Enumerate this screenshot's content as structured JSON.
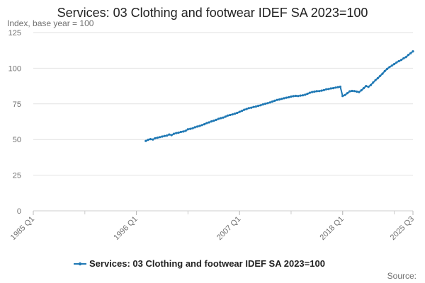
{
  "chart_data": {
    "type": "line",
    "title": "Services: 03 Clothing and footwear IDEF SA 2023=100",
    "subtitle": "Index, base year = 100",
    "source_label": "Source:",
    "ylim": [
      0,
      125
    ],
    "y_ticks": [
      "0",
      "25",
      "50",
      "75",
      "100",
      "125"
    ],
    "x_tick_labels": [
      "1985 Q1",
      "1996 Q1",
      "2007 Q1",
      "2018 Q1",
      "2025 Q3"
    ],
    "grid": true,
    "legend_position": "bottom",
    "series": [
      {
        "name": "Services: 03 Clothing and footwear IDEF SA 2023=100",
        "color": "#1f78b4",
        "x": [
          "1997 Q1",
          "1997 Q2",
          "1997 Q3",
          "1997 Q4",
          "1998 Q1",
          "1998 Q2",
          "1998 Q3",
          "1998 Q4",
          "1999 Q1",
          "1999 Q2",
          "1999 Q3",
          "1999 Q4",
          "2000 Q1",
          "2000 Q2",
          "2000 Q3",
          "2000 Q4",
          "2001 Q1",
          "2001 Q2",
          "2001 Q3",
          "2001 Q4",
          "2002 Q1",
          "2002 Q2",
          "2002 Q3",
          "2002 Q4",
          "2003 Q1",
          "2003 Q2",
          "2003 Q3",
          "2003 Q4",
          "2004 Q1",
          "2004 Q2",
          "2004 Q3",
          "2004 Q4",
          "2005 Q1",
          "2005 Q2",
          "2005 Q3",
          "2005 Q4",
          "2006 Q1",
          "2006 Q2",
          "2006 Q3",
          "2006 Q4",
          "2007 Q1",
          "2007 Q2",
          "2007 Q3",
          "2007 Q4",
          "2008 Q1",
          "2008 Q2",
          "2008 Q3",
          "2008 Q4",
          "2009 Q1",
          "2009 Q2",
          "2009 Q3",
          "2009 Q4",
          "2010 Q1",
          "2010 Q2",
          "2010 Q3",
          "2010 Q4",
          "2011 Q1",
          "2011 Q2",
          "2011 Q3",
          "2011 Q4",
          "2012 Q1",
          "2012 Q2",
          "2012 Q3",
          "2012 Q4",
          "2013 Q1",
          "2013 Q2",
          "2013 Q3",
          "2013 Q4",
          "2014 Q1",
          "2014 Q2",
          "2014 Q3",
          "2014 Q4",
          "2015 Q1",
          "2015 Q2",
          "2015 Q3",
          "2015 Q4",
          "2016 Q1",
          "2016 Q2",
          "2016 Q3",
          "2016 Q4",
          "2017 Q1",
          "2017 Q2",
          "2017 Q3",
          "2017 Q4",
          "2018 Q1",
          "2018 Q2",
          "2018 Q3",
          "2018 Q4",
          "2019 Q1",
          "2019 Q2",
          "2019 Q3",
          "2019 Q4",
          "2020 Q1",
          "2020 Q2",
          "2020 Q3",
          "2020 Q4",
          "2021 Q1",
          "2021 Q2",
          "2021 Q3",
          "2021 Q4",
          "2022 Q1",
          "2022 Q2",
          "2022 Q3",
          "2022 Q4",
          "2023 Q1",
          "2023 Q2",
          "2023 Q3",
          "2023 Q4",
          "2024 Q1",
          "2024 Q2",
          "2024 Q3",
          "2024 Q4",
          "2025 Q1",
          "2025 Q2",
          "2025 Q3"
        ],
        "values": [
          49.0,
          49.8,
          50.3,
          50.0,
          50.9,
          51.3,
          51.7,
          52.1,
          52.5,
          52.8,
          53.5,
          53.1,
          54.0,
          54.5,
          54.8,
          55.3,
          55.6,
          56.1,
          57.2,
          57.5,
          57.9,
          58.6,
          59.1,
          59.5,
          60.1,
          60.7,
          61.5,
          62.0,
          62.7,
          63.2,
          63.8,
          64.5,
          65.0,
          65.4,
          66.0,
          66.8,
          67.2,
          67.6,
          68.1,
          68.7,
          69.4,
          70.1,
          70.9,
          71.4,
          72.0,
          72.3,
          72.8,
          73.1,
          73.6,
          74.0,
          74.6,
          75.1,
          75.5,
          76.0,
          76.6,
          77.2,
          77.8,
          78.1,
          78.5,
          78.9,
          79.3,
          79.6,
          80.1,
          80.4,
          80.6,
          80.5,
          80.8,
          81.0,
          81.4,
          82.1,
          82.8,
          83.3,
          83.6,
          83.9,
          84.0,
          84.3,
          84.6,
          85.2,
          85.4,
          85.8,
          86.0,
          86.4,
          86.7,
          87.0,
          80.5,
          81.2,
          82.5,
          83.8,
          84.1,
          84.0,
          83.6,
          83.3,
          84.5,
          86.0,
          87.5,
          86.9,
          88.2,
          90.0,
          91.6,
          93.0,
          94.6,
          96.2,
          98.0,
          99.5,
          100.8,
          101.8,
          102.9,
          104.0,
          104.9,
          105.8,
          106.9,
          107.8,
          109.3,
          110.5,
          111.8
        ]
      }
    ]
  }
}
